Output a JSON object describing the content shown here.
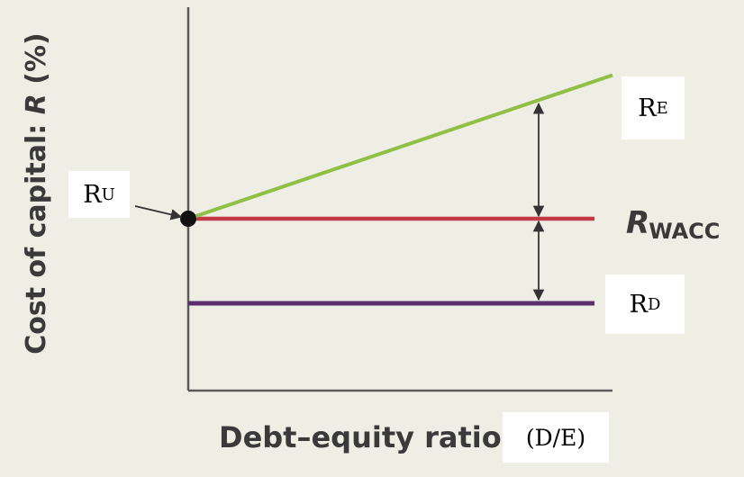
{
  "chart_data": {
    "type": "line",
    "xlabel": "Debt–equity ratio",
    "xlabel_suffix": "(D/E)",
    "ylabel": "Cost of capital: R (%)",
    "ylabel_plain": "Cost of capital: ",
    "ylabel_r": "R",
    "ylabel_unit": " (%)",
    "series": [
      {
        "name": "RE",
        "main": "R",
        "sub": "E",
        "color": "#8fbf45",
        "x": [
          0,
          1
        ],
        "y": [
          10,
          16.5
        ]
      },
      {
        "name": "RWACC",
        "main": "R",
        "sub": "WACC",
        "color": "#c23a48",
        "x": [
          0,
          1
        ],
        "y": [
          10,
          10
        ]
      },
      {
        "name": "RD",
        "main": "R",
        "sub": "D",
        "color": "#5a2d6e",
        "x": [
          0,
          1
        ],
        "y": [
          6,
          6
        ]
      }
    ],
    "point": {
      "name": "RU",
      "main": "R",
      "sub": "U",
      "x": 0,
      "y": 10
    },
    "annotations": [
      "arrow-RU-to-point",
      "double-arrow-RE-RWACC",
      "double-arrow-RWACC-RD"
    ]
  }
}
